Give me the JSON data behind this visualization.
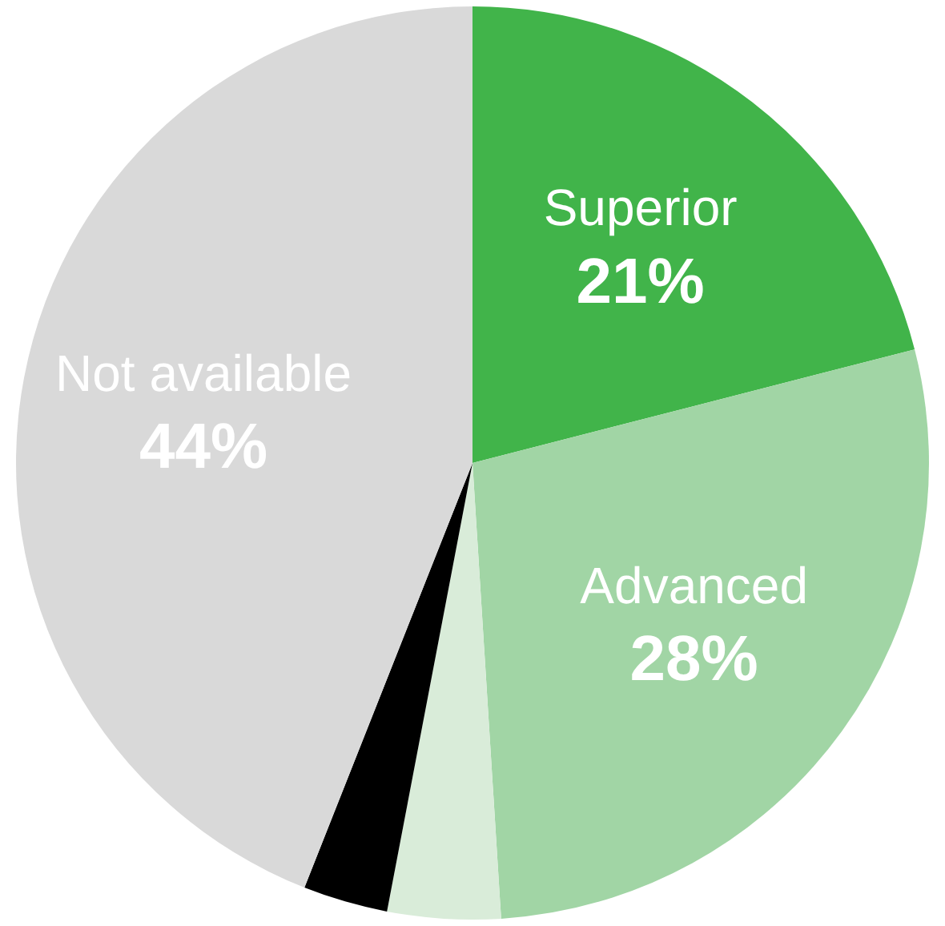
{
  "chart_data": {
    "type": "pie",
    "categories": [
      "Superior",
      "Advanced",
      null,
      null,
      "Not available"
    ],
    "values": [
      21,
      28,
      4,
      3,
      44
    ],
    "colors": [
      "#41b44a",
      "#a1d5a5",
      "#d9ecd9",
      "#000000",
      "#d9d9d9"
    ],
    "value_labels": [
      "21%",
      "28%",
      null,
      null,
      "44%"
    ],
    "legend": false
  }
}
